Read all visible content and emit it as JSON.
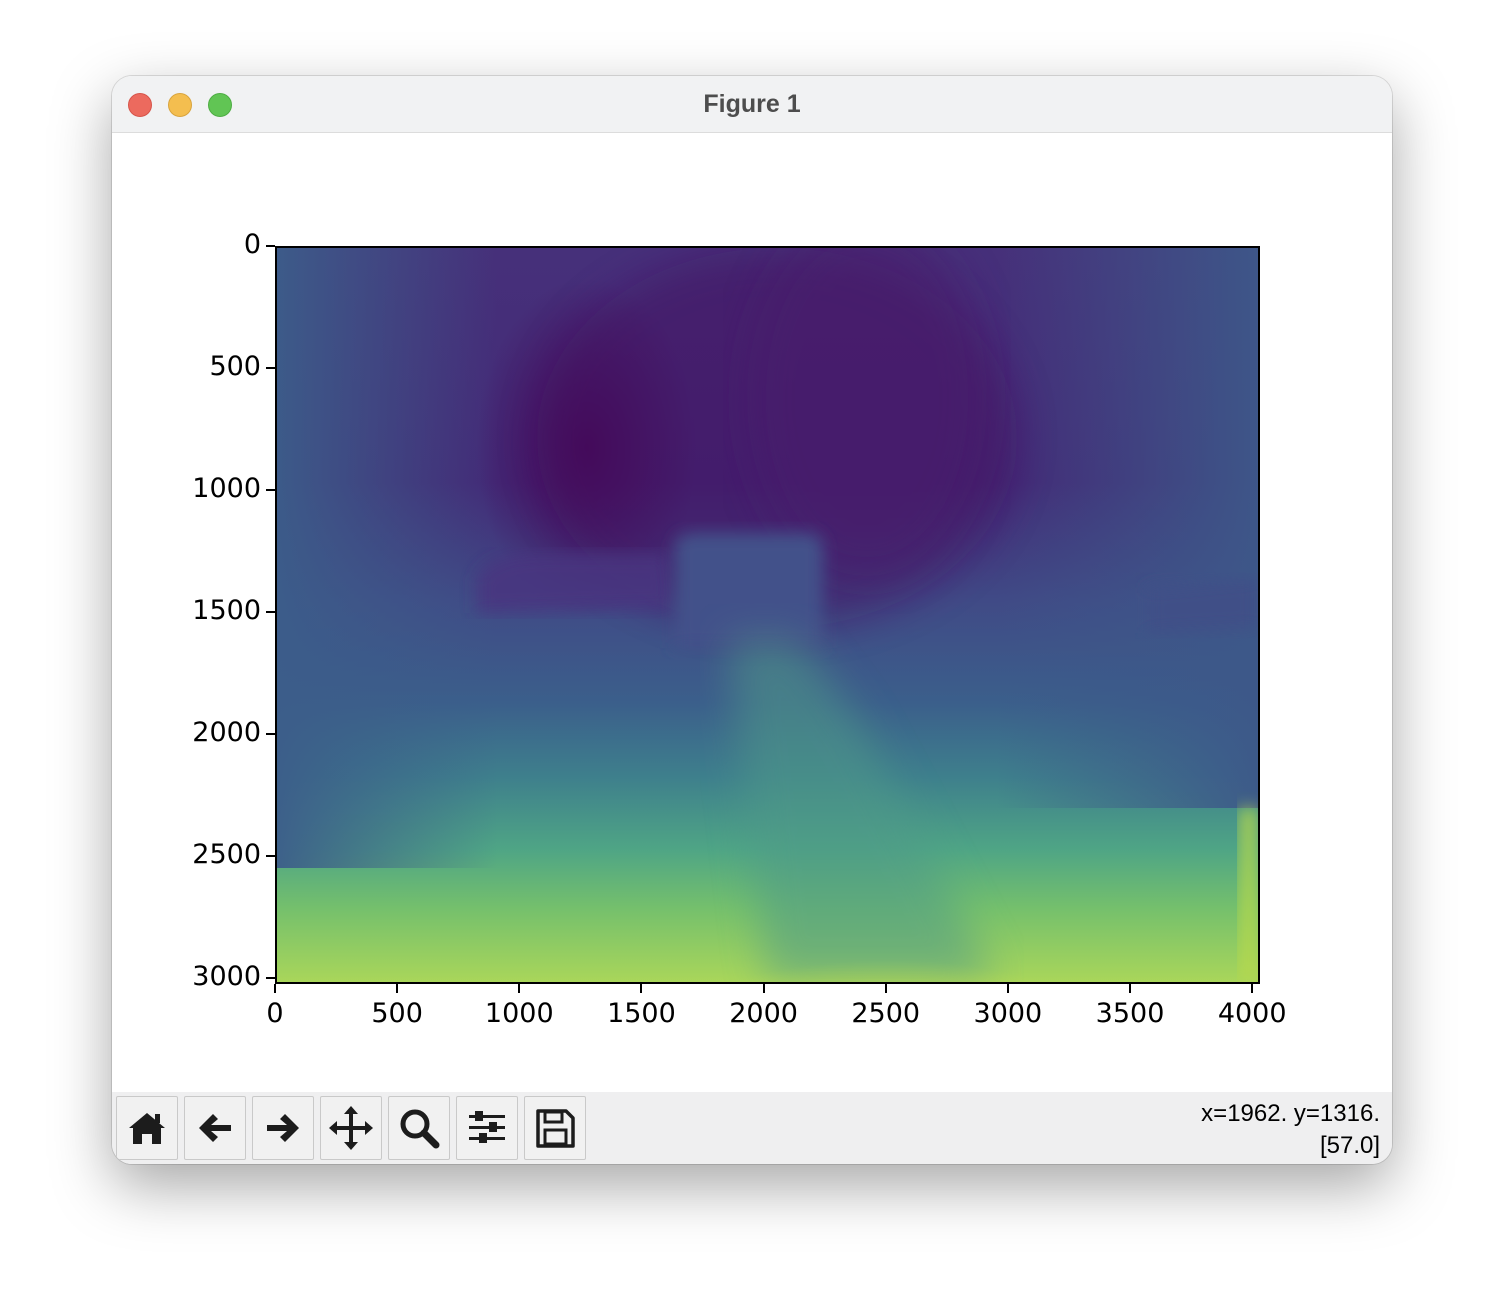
{
  "window": {
    "title": "Figure 1"
  },
  "chart_data": {
    "type": "heatmap",
    "colormap": "viridis",
    "title": "",
    "xlabel": "",
    "ylabel": "",
    "xlim": [
      0,
      4032
    ],
    "ylim": [
      3024,
      0
    ],
    "x_ticks": [
      "0",
      "500",
      "1000",
      "1500",
      "2000",
      "2500",
      "3000",
      "3500",
      "4000"
    ],
    "y_ticks": [
      "0",
      "500",
      "1000",
      "1500",
      "2000",
      "2500",
      "3000"
    ],
    "grid": false,
    "colors": {
      "low": "#440154",
      "mid": "#31688e",
      "mid_high": "#35b779",
      "high": "#fde725"
    }
  },
  "toolbar": {
    "buttons": [
      {
        "name": "home-icon"
      },
      {
        "name": "back-arrow-icon"
      },
      {
        "name": "forward-arrow-icon"
      },
      {
        "name": "pan-icon"
      },
      {
        "name": "zoom-icon"
      },
      {
        "name": "configure-subplots-icon"
      },
      {
        "name": "save-icon"
      }
    ],
    "status_line1": "x=1962. y=1316.",
    "status_line2": "[57.0]"
  }
}
